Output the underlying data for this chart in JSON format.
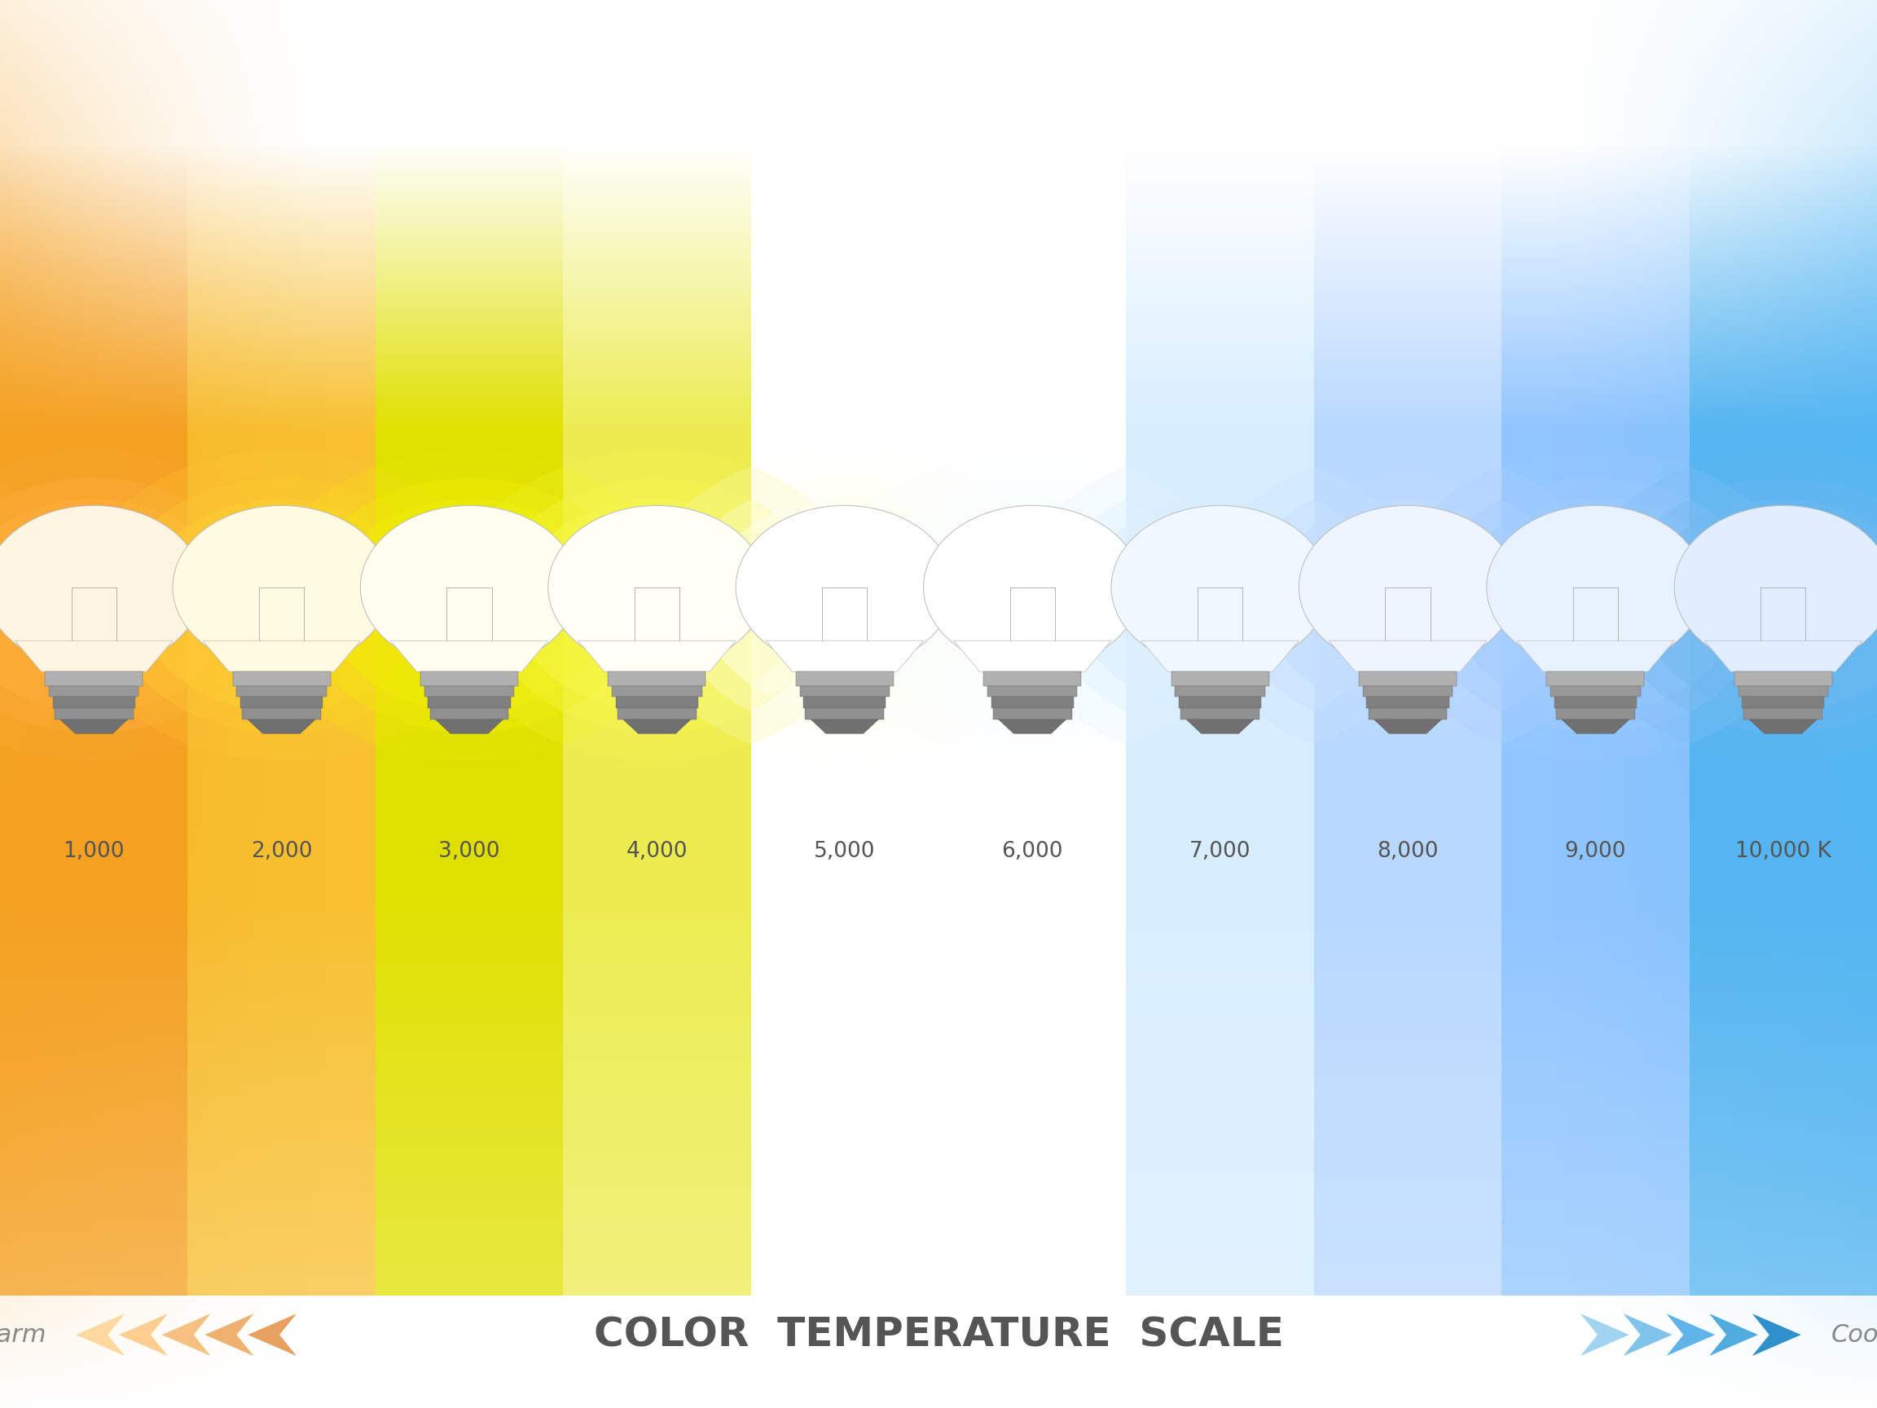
{
  "title": "COLOR  TEMPERATURE  SCALE",
  "temperatures": [
    "1,000",
    "2,000",
    "3,000",
    "4,000",
    "5,000",
    "6,000",
    "7,000",
    "8,000",
    "9,000",
    "10,000 K"
  ],
  "n_columns": 10,
  "bg_color": "#ffffff",
  "title_color": "#555555",
  "label_color": "#555555",
  "warm_label": "Warm",
  "cool_label": "Cool",
  "col_center_colors": [
    "#F5A020",
    "#F8C030",
    "#E0E000",
    "#ECEC50",
    "#FFFFFF",
    "#FFFFFF",
    "#D8EEFF",
    "#B8D8FF",
    "#90C5FF",
    "#55B5F0"
  ],
  "bulb_body_colors": [
    "#FFF5E0",
    "#FFFAE0",
    "#FFFFF0",
    "#FFFFF8",
    "#FFFFFF",
    "#FFFFFF",
    "#F0F8FF",
    "#EEF5FF",
    "#E8F2FF",
    "#E0EEFF"
  ],
  "bulb_glow_colors": [
    "#FFB040",
    "#FFD030",
    "#F0F000",
    "#F8F850",
    "#FFFFF0",
    "#F8FEFF",
    "#D8EEFF",
    "#C0DCFF",
    "#A0CCFF",
    "#70B8F0"
  ],
  "warm_arrow_colors": [
    "#E8A060",
    "#F0B070",
    "#F8C080",
    "#FECE90",
    "#FFD8A0"
  ],
  "cool_arrow_colors": [
    "#A0D4F0",
    "#80C4EC",
    "#60B4E8",
    "#50ACDC",
    "#3090CC"
  ]
}
